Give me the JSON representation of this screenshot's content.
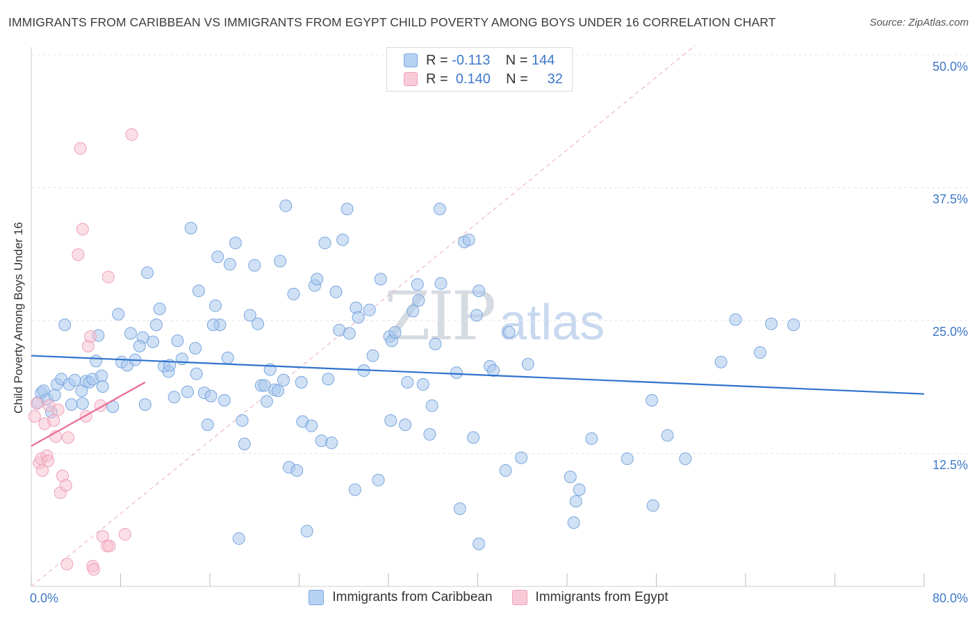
{
  "header": {
    "title": "IMMIGRANTS FROM CARIBBEAN VS IMMIGRANTS FROM EGYPT CHILD POVERTY AMONG BOYS UNDER 16 CORRELATION CHART",
    "source": "Source: ZipAtlas.com"
  },
  "watermark": {
    "zip": "ZIP",
    "atlas": "atlas"
  },
  "legend": {
    "caribbean": {
      "r_label": "R =",
      "r_value": "-0.113",
      "n_label": "N =",
      "n_value": "144"
    },
    "egypt": {
      "r_label": "R =",
      "r_value": "0.140",
      "n_label": "N =",
      "n_value": "32"
    }
  },
  "colors": {
    "caribbean_fill": "#a9c8ef",
    "caribbean_stroke": "#7aa6dd",
    "caribbean_line": "#2f72cc",
    "egypt_fill": "#f7bfd0",
    "egypt_stroke": "#ee9fb8",
    "egypt_line": "#e86a92",
    "tick_text": "#3d78c8",
    "grid": "#e4e4e4"
  },
  "chart_data": {
    "type": "scatter",
    "title": "IMMIGRANTS FROM CARIBBEAN VS IMMIGRANTS FROM EGYPT CHILD POVERTY AMONG BOYS UNDER 16 CORRELATION CHART",
    "xlabel": "",
    "ylabel": "Child Poverty Among Boys Under 16",
    "xlim": [
      0,
      80
    ],
    "ylim": [
      0,
      50
    ],
    "x_tick_labels": [
      "0.0%",
      "80.0%"
    ],
    "y_ticks": [
      12.5,
      25.0,
      37.5,
      50.0
    ],
    "y_tick_labels": [
      "12.5%",
      "25.0%",
      "37.5%",
      "50.0%"
    ],
    "grid": true,
    "legend_position": "top-center",
    "series": [
      {
        "name": "Immigrants from Caribbean",
        "r": -0.113,
        "n": 144,
        "trend": {
          "x": [
            0,
            80
          ],
          "y": [
            21.7,
            18.1
          ]
        },
        "points": [
          [
            0.6,
            17.3
          ],
          [
            0.9,
            18.2
          ],
          [
            1.1,
            18.4
          ],
          [
            1.4,
            17.6
          ],
          [
            1.8,
            16.4
          ],
          [
            2.1,
            18.0
          ],
          [
            2.3,
            19.0
          ],
          [
            2.7,
            19.5
          ],
          [
            3.0,
            24.6
          ],
          [
            3.4,
            19.0
          ],
          [
            3.6,
            17.1
          ],
          [
            3.9,
            19.4
          ],
          [
            4.5,
            18.4
          ],
          [
            4.6,
            17.2
          ],
          [
            4.9,
            19.3
          ],
          [
            5.2,
            19.2
          ],
          [
            5.5,
            19.5
          ],
          [
            5.8,
            21.2
          ],
          [
            6.3,
            19.8
          ],
          [
            6.4,
            18.8
          ],
          [
            6.0,
            23.6
          ],
          [
            7.3,
            16.9
          ],
          [
            7.8,
            25.6
          ],
          [
            8.1,
            21.1
          ],
          [
            8.6,
            20.8
          ],
          [
            8.9,
            23.8
          ],
          [
            9.3,
            21.3
          ],
          [
            10.0,
            23.4
          ],
          [
            9.7,
            22.6
          ],
          [
            10.4,
            29.5
          ],
          [
            10.9,
            23.0
          ],
          [
            11.2,
            24.6
          ],
          [
            11.5,
            26.1
          ],
          [
            11.9,
            20.7
          ],
          [
            12.3,
            20.2
          ],
          [
            12.4,
            20.8
          ],
          [
            12.8,
            17.8
          ],
          [
            13.1,
            23.1
          ],
          [
            13.5,
            21.4
          ],
          [
            14.0,
            18.3
          ],
          [
            14.3,
            33.7
          ],
          [
            14.7,
            22.4
          ],
          [
            14.8,
            20.0
          ],
          [
            15.0,
            27.8
          ],
          [
            15.5,
            18.2
          ],
          [
            15.8,
            15.2
          ],
          [
            16.1,
            17.9
          ],
          [
            16.5,
            26.4
          ],
          [
            16.7,
            31.0
          ],
          [
            16.9,
            24.6
          ],
          [
            17.3,
            17.5
          ],
          [
            17.6,
            21.5
          ],
          [
            17.8,
            30.3
          ],
          [
            18.3,
            32.3
          ],
          [
            18.6,
            4.5
          ],
          [
            18.9,
            15.6
          ],
          [
            19.1,
            13.4
          ],
          [
            19.6,
            25.5
          ],
          [
            20.0,
            30.2
          ],
          [
            20.3,
            24.7
          ],
          [
            20.6,
            18.9
          ],
          [
            20.9,
            18.9
          ],
          [
            21.1,
            17.4
          ],
          [
            21.4,
            20.4
          ],
          [
            21.8,
            18.5
          ],
          [
            22.3,
            30.6
          ],
          [
            22.6,
            19.4
          ],
          [
            22.8,
            35.8
          ],
          [
            23.1,
            11.2
          ],
          [
            23.5,
            27.5
          ],
          [
            23.8,
            10.9
          ],
          [
            24.2,
            19.2
          ],
          [
            24.3,
            15.5
          ],
          [
            24.7,
            5.2
          ],
          [
            25.1,
            15.1
          ],
          [
            25.4,
            28.3
          ],
          [
            25.6,
            28.9
          ],
          [
            26.0,
            13.7
          ],
          [
            26.3,
            32.3
          ],
          [
            26.6,
            19.5
          ],
          [
            26.9,
            13.5
          ],
          [
            27.3,
            27.7
          ],
          [
            27.6,
            24.1
          ],
          [
            27.9,
            32.6
          ],
          [
            28.3,
            35.5
          ],
          [
            28.5,
            23.8
          ],
          [
            29.0,
            9.1
          ],
          [
            29.1,
            26.2
          ],
          [
            29.3,
            25.3
          ],
          [
            29.8,
            20.3
          ],
          [
            30.3,
            26.0
          ],
          [
            30.6,
            21.7
          ],
          [
            31.1,
            10.0
          ],
          [
            31.3,
            28.9
          ],
          [
            32.1,
            23.5
          ],
          [
            32.3,
            23.1
          ],
          [
            32.6,
            23.9
          ],
          [
            32.2,
            15.6
          ],
          [
            33.5,
            15.2
          ],
          [
            33.7,
            19.2
          ],
          [
            34.2,
            25.9
          ],
          [
            34.6,
            28.4
          ],
          [
            34.7,
            26.9
          ],
          [
            35.1,
            19.0
          ],
          [
            35.7,
            14.3
          ],
          [
            35.9,
            17.0
          ],
          [
            36.2,
            22.8
          ],
          [
            36.6,
            35.5
          ],
          [
            36.7,
            28.5
          ],
          [
            38.1,
            20.1
          ],
          [
            38.4,
            7.3
          ],
          [
            38.8,
            32.4
          ],
          [
            39.2,
            32.6
          ],
          [
            39.6,
            14.0
          ],
          [
            39.9,
            25.5
          ],
          [
            40.1,
            27.8
          ],
          [
            40.1,
            4.0
          ],
          [
            41.1,
            20.7
          ],
          [
            41.4,
            20.3
          ],
          [
            42.5,
            10.9
          ],
          [
            42.8,
            23.9
          ],
          [
            43.9,
            12.1
          ],
          [
            44.5,
            20.9
          ],
          [
            48.3,
            10.3
          ],
          [
            48.8,
            8.0
          ],
          [
            49.1,
            9.1
          ],
          [
            48.6,
            6.0
          ],
          [
            50.2,
            13.9
          ],
          [
            53.4,
            12.0
          ],
          [
            55.6,
            17.5
          ],
          [
            55.7,
            7.6
          ],
          [
            57.0,
            14.2
          ],
          [
            58.6,
            12.0
          ],
          [
            61.8,
            21.1
          ],
          [
            65.3,
            22.0
          ],
          [
            68.3,
            24.6
          ],
          [
            66.3,
            24.7
          ],
          [
            63.1,
            25.1
          ],
          [
            22.1,
            18.4
          ],
          [
            16.3,
            24.6
          ],
          [
            10.2,
            17.1
          ]
        ]
      },
      {
        "name": "Immigrants from Egypt",
        "r": 0.14,
        "n": 32,
        "trend": {
          "x": [
            0,
            10.2
          ],
          "y": [
            13.2,
            19.2
          ]
        },
        "points": [
          [
            0.3,
            16.0
          ],
          [
            0.5,
            17.2
          ],
          [
            0.7,
            11.6
          ],
          [
            0.9,
            12.0
          ],
          [
            1.0,
            10.9
          ],
          [
            1.2,
            15.3
          ],
          [
            1.4,
            12.3
          ],
          [
            1.5,
            11.8
          ],
          [
            1.6,
            17.0
          ],
          [
            2.0,
            15.6
          ],
          [
            2.2,
            14.1
          ],
          [
            2.4,
            16.6
          ],
          [
            2.6,
            8.8
          ],
          [
            2.8,
            10.4
          ],
          [
            3.1,
            9.5
          ],
          [
            3.3,
            14.0
          ],
          [
            3.2,
            2.1
          ],
          [
            4.4,
            41.2
          ],
          [
            4.6,
            33.6
          ],
          [
            4.2,
            31.2
          ],
          [
            4.9,
            16.0
          ],
          [
            5.1,
            22.6
          ],
          [
            5.3,
            23.5
          ],
          [
            5.5,
            1.9
          ],
          [
            5.6,
            1.6
          ],
          [
            6.2,
            17.0
          ],
          [
            6.4,
            4.7
          ],
          [
            6.8,
            3.8
          ],
          [
            7.0,
            3.8
          ],
          [
            6.9,
            29.1
          ],
          [
            8.4,
            4.9
          ],
          [
            9.0,
            42.5
          ]
        ]
      }
    ]
  },
  "bottom_legend": {
    "caribbean_label": "Immigrants from Caribbean",
    "egypt_label": "Immigrants from Egypt"
  },
  "axes": {
    "y_label": "Child Poverty Among Boys Under 16",
    "x_min_label": "0.0%",
    "x_max_label": "80.0%",
    "y_tick_1": "12.5%",
    "y_tick_2": "25.0%",
    "y_tick_3": "37.5%",
    "y_tick_4": "50.0%"
  }
}
